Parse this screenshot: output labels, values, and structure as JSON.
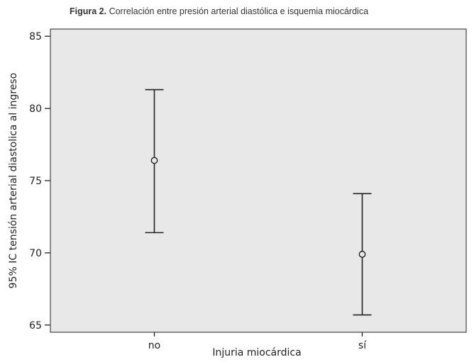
{
  "caption": {
    "figure_label": "Figura 2.",
    "text": "Correlación entre presión arterial diastólica e isquemia miocárdica"
  },
  "chart_data": {
    "type": "errorbar",
    "title": "Correlación entre presión arterial diastólica e isquemia miocárdica",
    "xlabel": "Injuria miocárdica",
    "ylabel": "95% IC tensión arterial diastolica al ingreso",
    "categories": [
      "no",
      "sí"
    ],
    "series": [
      {
        "points": [
          {
            "category": "no",
            "mean": 76.4,
            "lower": 71.4,
            "upper": 81.3
          },
          {
            "category": "sí",
            "mean": 69.9,
            "lower": 65.7,
            "upper": 74.1
          }
        ]
      }
    ],
    "ylim": [
      64.5,
      85.5
    ],
    "yticks": [
      65,
      70,
      75,
      80,
      85
    ],
    "grid": false,
    "plot_background": "#e8e8e8"
  }
}
